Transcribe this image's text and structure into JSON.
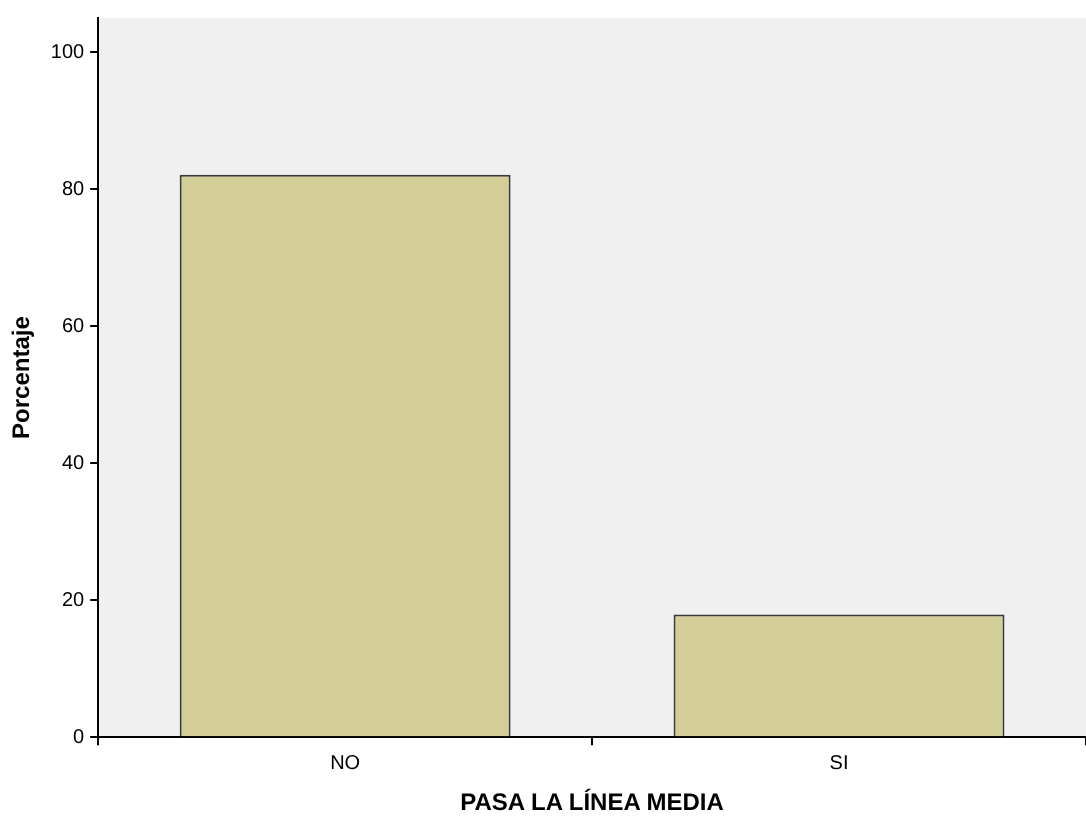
{
  "chart_data": {
    "type": "bar",
    "xlabel": "PASA LA LÍNEA MEDIA",
    "ylabel": "Porcentaje",
    "categories": [
      "NO",
      "SI"
    ],
    "values": [
      82.1,
      17.9
    ],
    "color": "#d3ce98",
    "ylim": [
      0,
      105
    ],
    "yticks": [
      0,
      20,
      40,
      60,
      80,
      100
    ],
    "grid": false,
    "legend": false
  }
}
